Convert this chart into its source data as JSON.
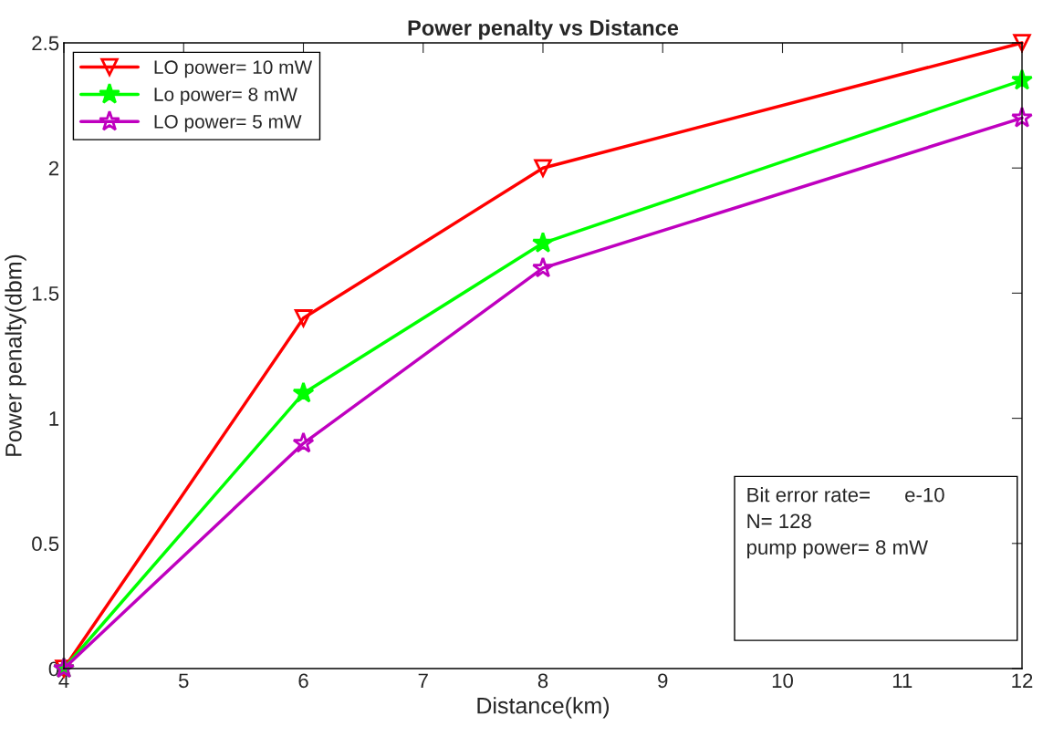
{
  "chart_data": {
    "type": "line",
    "title": "Power penalty vs Distance",
    "xlabel": "Distance(km)",
    "ylabel": "Power penalty(dbm)",
    "x": [
      4,
      6,
      8,
      12
    ],
    "series": [
      {
        "name": "LO power= 10 mW",
        "color": "#ff0000",
        "marker": "triangle",
        "values": [
          0,
          1.4,
          2.0,
          2.5
        ]
      },
      {
        "name": "Lo power= 8 mW",
        "color": "#00ff00",
        "marker": "star",
        "values": [
          0,
          1.1,
          1.7,
          2.35
        ]
      },
      {
        "name": "LO power= 5 mW",
        "color": "#bf00bf",
        "marker": "star",
        "values": [
          0,
          0.9,
          1.6,
          2.2
        ]
      }
    ],
    "xlim": [
      4,
      12
    ],
    "xticks": [
      4,
      5,
      6,
      7,
      8,
      9,
      10,
      11,
      12
    ],
    "ylim": [
      0,
      2.5
    ],
    "yticks": [
      0,
      0.5,
      1,
      1.5,
      2,
      2.5
    ],
    "grid": false,
    "legend": "top left",
    "line_style": "solid",
    "annotations": [
      "Bit error rate=      e-10\nN= 128\npump power= 8 mW"
    ]
  }
}
